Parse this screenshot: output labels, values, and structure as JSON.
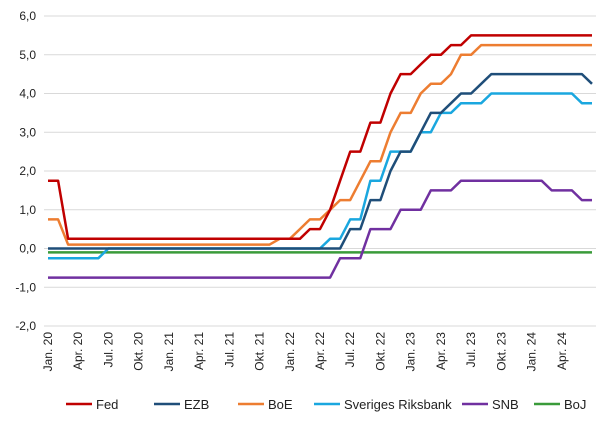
{
  "chart_data": {
    "type": "line",
    "title": "",
    "xlabel": "",
    "ylabel": "",
    "ylim": [
      -2,
      6
    ],
    "yticks": [
      -2,
      -1,
      0,
      1,
      2,
      3,
      4,
      5,
      6
    ],
    "ytick_labels": [
      "-2,0",
      "-1,0",
      "0,0",
      "1,0",
      "2,0",
      "3,0",
      "4,0",
      "5,0",
      "6,0"
    ],
    "grid": "horizontal",
    "x_range": [
      "2020-01",
      "2024-07"
    ],
    "xtick_labels": [
      {
        "month": "2020-01",
        "label": "Jan. 20"
      },
      {
        "month": "2020-04",
        "label": "Apr. 20"
      },
      {
        "month": "2020-07",
        "label": "Jul. 20"
      },
      {
        "month": "2020-10",
        "label": "Okt. 20"
      },
      {
        "month": "2021-01",
        "label": "Jan. 21"
      },
      {
        "month": "2021-04",
        "label": "Apr. 21"
      },
      {
        "month": "2021-07",
        "label": "Jul. 21"
      },
      {
        "month": "2021-10",
        "label": "Okt. 21"
      },
      {
        "month": "2022-01",
        "label": "Jan. 22"
      },
      {
        "month": "2022-04",
        "label": "Apr. 22"
      },
      {
        "month": "2022-07",
        "label": "Jul. 22"
      },
      {
        "month": "2022-10",
        "label": "Okt. 22"
      },
      {
        "month": "2023-01",
        "label": "Jan. 23"
      },
      {
        "month": "2023-04",
        "label": "Apr. 23"
      },
      {
        "month": "2023-07",
        "label": "Jul. 23"
      },
      {
        "month": "2023-10",
        "label": "Okt. 23"
      },
      {
        "month": "2024-01",
        "label": "Jan. 24"
      },
      {
        "month": "2024-04",
        "label": "Apr. 24"
      }
    ],
    "legend_position": "bottom",
    "series": [
      {
        "name": "Fed",
        "color": "#c00000",
        "points": [
          [
            "2020-01",
            1.75
          ],
          [
            "2020-02",
            1.75
          ],
          [
            "2020-03",
            0.25
          ],
          [
            "2022-02",
            0.25
          ],
          [
            "2022-03",
            0.5
          ],
          [
            "2022-04",
            0.5
          ],
          [
            "2022-05",
            1.0
          ],
          [
            "2022-06",
            1.75
          ],
          [
            "2022-07",
            2.5
          ],
          [
            "2022-08",
            2.5
          ],
          [
            "2022-09",
            3.25
          ],
          [
            "2022-10",
            3.25
          ],
          [
            "2022-11",
            4.0
          ],
          [
            "2022-12",
            4.5
          ],
          [
            "2023-01",
            4.5
          ],
          [
            "2023-02",
            4.75
          ],
          [
            "2023-03",
            5.0
          ],
          [
            "2023-04",
            5.0
          ],
          [
            "2023-05",
            5.25
          ],
          [
            "2023-06",
            5.25
          ],
          [
            "2023-07",
            5.5
          ],
          [
            "2024-07",
            5.5
          ]
        ]
      },
      {
        "name": "EZB",
        "color": "#1f4e79",
        "points": [
          [
            "2020-01",
            0.0
          ],
          [
            "2022-06",
            0.0
          ],
          [
            "2022-07",
            0.5
          ],
          [
            "2022-08",
            0.5
          ],
          [
            "2022-09",
            1.25
          ],
          [
            "2022-10",
            1.25
          ],
          [
            "2022-11",
            2.0
          ],
          [
            "2022-12",
            2.5
          ],
          [
            "2023-01",
            2.5
          ],
          [
            "2023-02",
            3.0
          ],
          [
            "2023-03",
            3.5
          ],
          [
            "2023-04",
            3.5
          ],
          [
            "2023-05",
            3.75
          ],
          [
            "2023-06",
            4.0
          ],
          [
            "2023-07",
            4.0
          ],
          [
            "2023-08",
            4.25
          ],
          [
            "2023-09",
            4.5
          ],
          [
            "2024-05",
            4.5
          ],
          [
            "2024-06",
            4.5
          ],
          [
            "2024-07",
            4.25
          ]
        ]
      },
      {
        "name": "BoE",
        "color": "#ed7d31",
        "points": [
          [
            "2020-01",
            0.75
          ],
          [
            "2020-02",
            0.75
          ],
          [
            "2020-03",
            0.1
          ],
          [
            "2021-11",
            0.1
          ],
          [
            "2021-12",
            0.25
          ],
          [
            "2022-01",
            0.25
          ],
          [
            "2022-02",
            0.5
          ],
          [
            "2022-03",
            0.75
          ],
          [
            "2022-04",
            0.75
          ],
          [
            "2022-05",
            1.0
          ],
          [
            "2022-06",
            1.25
          ],
          [
            "2022-07",
            1.25
          ],
          [
            "2022-08",
            1.75
          ],
          [
            "2022-09",
            2.25
          ],
          [
            "2022-10",
            2.25
          ],
          [
            "2022-11",
            3.0
          ],
          [
            "2022-12",
            3.5
          ],
          [
            "2023-01",
            3.5
          ],
          [
            "2023-02",
            4.0
          ],
          [
            "2023-03",
            4.25
          ],
          [
            "2023-04",
            4.25
          ],
          [
            "2023-05",
            4.5
          ],
          [
            "2023-06",
            5.0
          ],
          [
            "2023-07",
            5.0
          ],
          [
            "2023-08",
            5.25
          ],
          [
            "2024-07",
            5.25
          ]
        ]
      },
      {
        "name": "Sveriges Riksbank",
        "color": "#1aa7df",
        "points": [
          [
            "2020-01",
            -0.25
          ],
          [
            "2020-06",
            -0.25
          ],
          [
            "2020-07",
            0.0
          ],
          [
            "2022-03",
            0.0
          ],
          [
            "2022-04",
            0.0
          ],
          [
            "2022-05",
            0.25
          ],
          [
            "2022-06",
            0.25
          ],
          [
            "2022-07",
            0.75
          ],
          [
            "2022-08",
            0.75
          ],
          [
            "2022-09",
            1.75
          ],
          [
            "2022-10",
            1.75
          ],
          [
            "2022-11",
            2.5
          ],
          [
            "2022-12",
            2.5
          ],
          [
            "2023-01",
            2.5
          ],
          [
            "2023-02",
            3.0
          ],
          [
            "2023-03",
            3.0
          ],
          [
            "2023-04",
            3.5
          ],
          [
            "2023-05",
            3.5
          ],
          [
            "2023-06",
            3.75
          ],
          [
            "2023-07",
            3.75
          ],
          [
            "2023-08",
            3.75
          ],
          [
            "2023-09",
            4.0
          ],
          [
            "2024-05",
            4.0
          ],
          [
            "2024-06",
            3.75
          ],
          [
            "2024-07",
            3.75
          ]
        ]
      },
      {
        "name": "SNB",
        "color": "#7030a0",
        "points": [
          [
            "2020-01",
            -0.75
          ],
          [
            "2022-05",
            -0.75
          ],
          [
            "2022-06",
            -0.25
          ],
          [
            "2022-07",
            -0.25
          ],
          [
            "2022-08",
            -0.25
          ],
          [
            "2022-09",
            0.5
          ],
          [
            "2022-10",
            0.5
          ],
          [
            "2022-11",
            0.5
          ],
          [
            "2022-12",
            1.0
          ],
          [
            "2023-01",
            1.0
          ],
          [
            "2023-02",
            1.0
          ],
          [
            "2023-03",
            1.5
          ],
          [
            "2023-04",
            1.5
          ],
          [
            "2023-05",
            1.5
          ],
          [
            "2023-06",
            1.75
          ],
          [
            "2024-02",
            1.75
          ],
          [
            "2024-03",
            1.5
          ],
          [
            "2024-04",
            1.5
          ],
          [
            "2024-05",
            1.5
          ],
          [
            "2024-06",
            1.25
          ],
          [
            "2024-07",
            1.25
          ]
        ]
      },
      {
        "name": "BoJ",
        "color": "#3a9b3a",
        "points": [
          [
            "2020-01",
            -0.1
          ],
          [
            "2024-07",
            -0.1
          ]
        ]
      }
    ]
  }
}
